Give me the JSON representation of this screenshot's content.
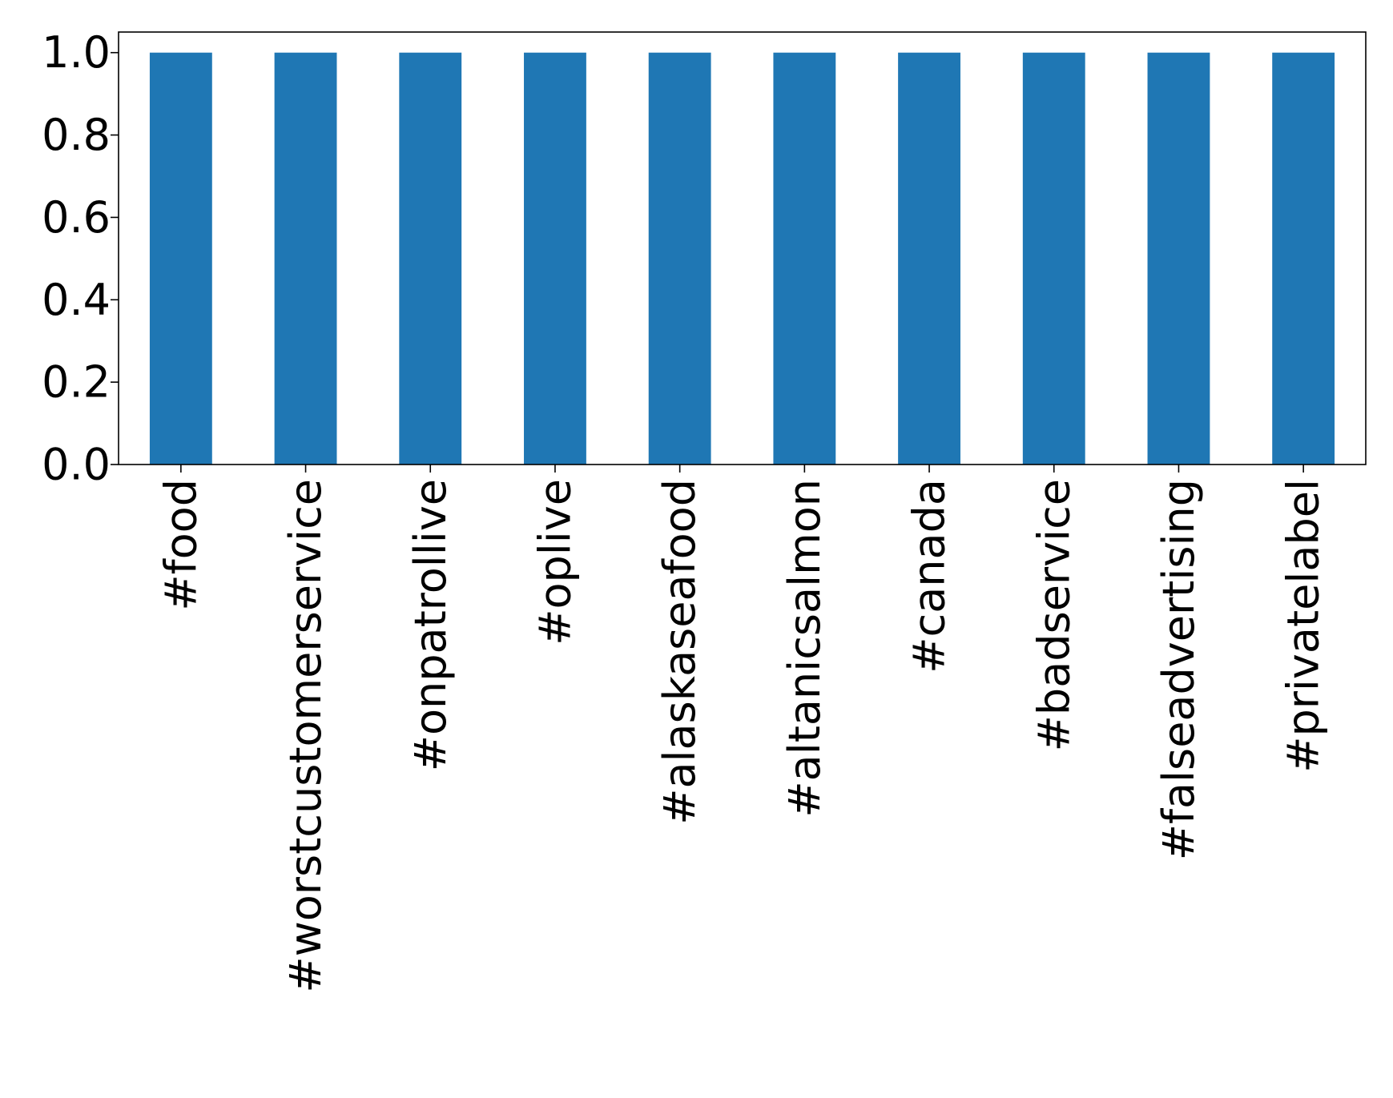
{
  "chart_data": {
    "type": "bar",
    "title": "",
    "xlabel": "",
    "ylabel": "",
    "categories": [
      "#food",
      "#worstcustomerservice",
      "#onpatrollive",
      "#oplive",
      "#alaskaseafood",
      "#altanicsalmon",
      "#canada",
      "#badservice",
      "#falseadvertising",
      "#privatelabel"
    ],
    "values": [
      1.0,
      1.0,
      1.0,
      1.0,
      1.0,
      1.0,
      1.0,
      1.0,
      1.0,
      1.0
    ],
    "ylim": [
      0,
      1.05
    ],
    "yticks": [
      "0.0",
      "0.2",
      "0.4",
      "0.6",
      "0.8",
      "1.0"
    ],
    "bar_color": "#1f77b4",
    "grid": false,
    "legend": "none"
  }
}
